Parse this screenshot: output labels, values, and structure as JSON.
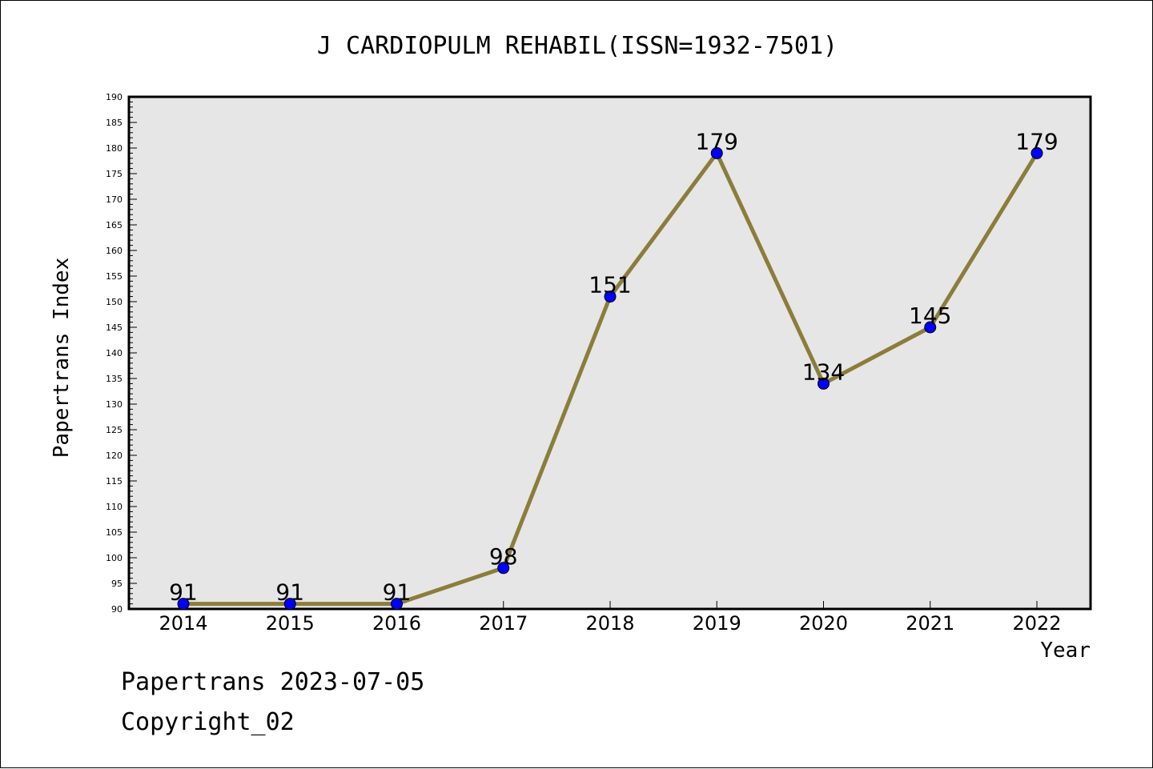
{
  "chart_data": {
    "type": "line",
    "title": "J CARDIOPULM REHABIL(ISSN=1932-7501)",
    "xlabel": "Year",
    "ylabel": "Papertrans Index",
    "categories": [
      "2014",
      "2015",
      "2016",
      "2017",
      "2018",
      "2019",
      "2020",
      "2021",
      "2022"
    ],
    "values": [
      91,
      91,
      91,
      98,
      151,
      179,
      134,
      145,
      179
    ],
    "data_labels": [
      "91",
      "91",
      "91",
      "98",
      "151",
      "179",
      "134",
      "145",
      "179"
    ],
    "ylim": [
      90,
      190
    ],
    "yticks": [
      "90",
      "95",
      "100",
      "105",
      "110",
      "115",
      "120",
      "125",
      "130",
      "135",
      "140",
      "145",
      "150",
      "155",
      "160",
      "165",
      "170",
      "175",
      "180",
      "185",
      "190"
    ],
    "grid": false,
    "line_color": "#8B7D3A",
    "marker_color": "#0000FF",
    "plot_background": "#E6E6E6"
  },
  "footer": {
    "date_line": "Papertrans 2023-07-05",
    "copyright": "Copyright_02"
  }
}
